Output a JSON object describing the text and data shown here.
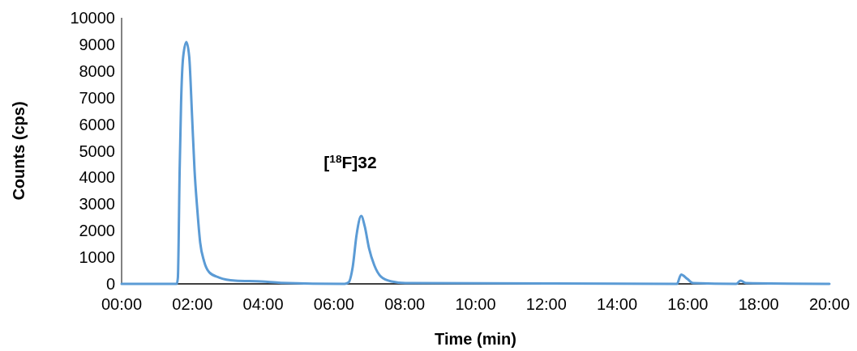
{
  "chart_data": {
    "type": "line",
    "xlabel": "Time (min)",
    "ylabel": "Counts (cps)",
    "x": [
      0,
      1.56,
      1.59,
      1.64,
      1.68,
      1.74,
      1.83,
      1.91,
      1.99,
      2.06,
      2.14,
      2.22,
      2.33,
      2.48,
      2.75,
      3.21,
      3.96,
      4.5,
      6.3,
      6.41,
      6.53,
      6.64,
      6.77,
      6.87,
      6.99,
      7.14,
      7.33,
      7.63,
      8.02,
      15.6,
      15.69,
      15.81,
      15.99,
      16.15,
      17.37,
      17.49,
      17.64,
      20
    ],
    "series": [
      {
        "color": "#5b9bd5",
        "values": [
          0,
          0,
          240,
          4290,
          6800,
          8540,
          9090,
          8540,
          6320,
          4290,
          2770,
          1550,
          850,
          430,
          240,
          120,
          90,
          40,
          0,
          50,
          640,
          1850,
          2550,
          2160,
          1340,
          700,
          270,
          90,
          30,
          0,
          0,
          350,
          180,
          30,
          0,
          120,
          30,
          0
        ]
      }
    ],
    "xlim": [
      0,
      20
    ],
    "xticks": [
      {
        "value": 0,
        "label": "00:00"
      },
      {
        "value": 2,
        "label": "02:00"
      },
      {
        "value": 4,
        "label": "04:00"
      },
      {
        "value": 6,
        "label": "06:00"
      },
      {
        "value": 8,
        "label": "08:00"
      },
      {
        "value": 10,
        "label": "10:00"
      },
      {
        "value": 12,
        "label": "12:00"
      },
      {
        "value": 14,
        "label": "14:00"
      },
      {
        "value": 16,
        "label": "16:00"
      },
      {
        "value": 18,
        "label": "18:00"
      },
      {
        "value": 20,
        "label": "20:00"
      }
    ],
    "ylim": [
      0,
      10000
    ],
    "yticks": [
      0,
      1000,
      2000,
      3000,
      4000,
      5000,
      6000,
      7000,
      8000,
      9000,
      10000
    ],
    "annotations": [
      "[$^{18}$F]32"
    ],
    "grid": false,
    "marker": "none",
    "line_style": "solid"
  }
}
